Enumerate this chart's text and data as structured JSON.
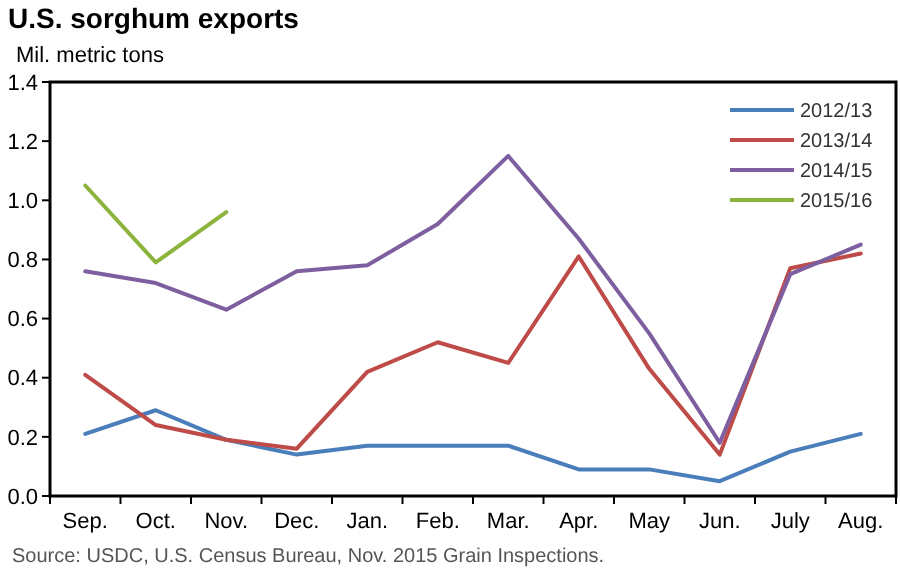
{
  "chart_data": {
    "type": "line",
    "title": "U.S. sorghum exports",
    "subtitle": "Mil. metric tons",
    "annotations": [
      "Source: USDC, U.S. Census Bureau, Nov. 2015 Grain Inspections."
    ],
    "categories": [
      "Sep.",
      "Oct.",
      "Nov.",
      "Dec.",
      "Jan.",
      "Feb.",
      "Mar.",
      "Apr.",
      "May",
      "Jun.",
      "July",
      "Aug."
    ],
    "series": [
      {
        "name": "2012/13",
        "color": "#4a7ebb",
        "values": [
          0.21,
          0.29,
          0.19,
          0.14,
          0.17,
          0.17,
          0.17,
          0.09,
          0.09,
          0.05,
          0.15,
          0.21
        ]
      },
      {
        "name": "2013/14",
        "color": "#be4b48",
        "values": [
          0.41,
          0.24,
          0.19,
          0.16,
          0.42,
          0.52,
          0.45,
          0.81,
          0.43,
          0.14,
          0.77,
          0.82
        ]
      },
      {
        "name": "2014/15",
        "color": "#7d5fa0",
        "values": [
          0.76,
          0.72,
          0.63,
          0.76,
          0.78,
          0.92,
          1.15,
          0.87,
          0.55,
          0.18,
          0.75,
          0.85
        ]
      },
      {
        "name": "2015/16",
        "color": "#8cb43c",
        "values": [
          1.05,
          0.79,
          0.96,
          null,
          null,
          null,
          null,
          null,
          null,
          null,
          null,
          null
        ]
      }
    ],
    "ylim": [
      0,
      1.4
    ],
    "yticks": [
      {
        "value": 0,
        "label": "0.0"
      },
      {
        "value": 0.2,
        "label": "0.2"
      },
      {
        "value": 0.4,
        "label": "0.4"
      },
      {
        "value": 0.6,
        "label": "0.6"
      },
      {
        "value": 0.8,
        "label": "0.8"
      },
      {
        "value": 1,
        "label": "1.0"
      },
      {
        "value": 1.2,
        "label": "1.2"
      },
      {
        "value": 1.4,
        "label": "1.4"
      }
    ],
    "grid": false,
    "legend": "top right",
    "marker": "none",
    "line_style": "solid"
  }
}
